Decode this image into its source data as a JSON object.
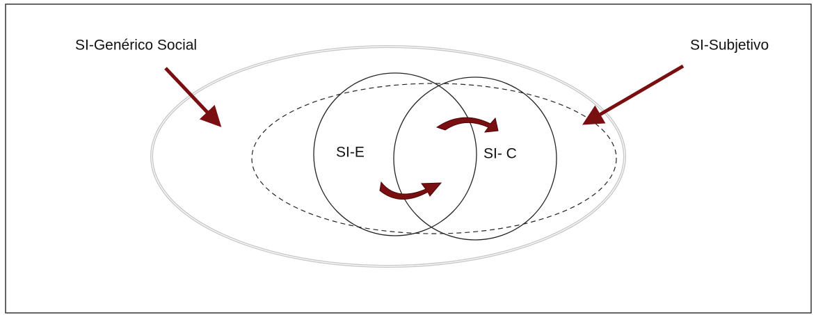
{
  "labels": {
    "generic_social": "SI-Genérico Social",
    "subjective": "SI-Subjetivo",
    "si_e": "SI-E",
    "si_c": "SI- C"
  }
}
